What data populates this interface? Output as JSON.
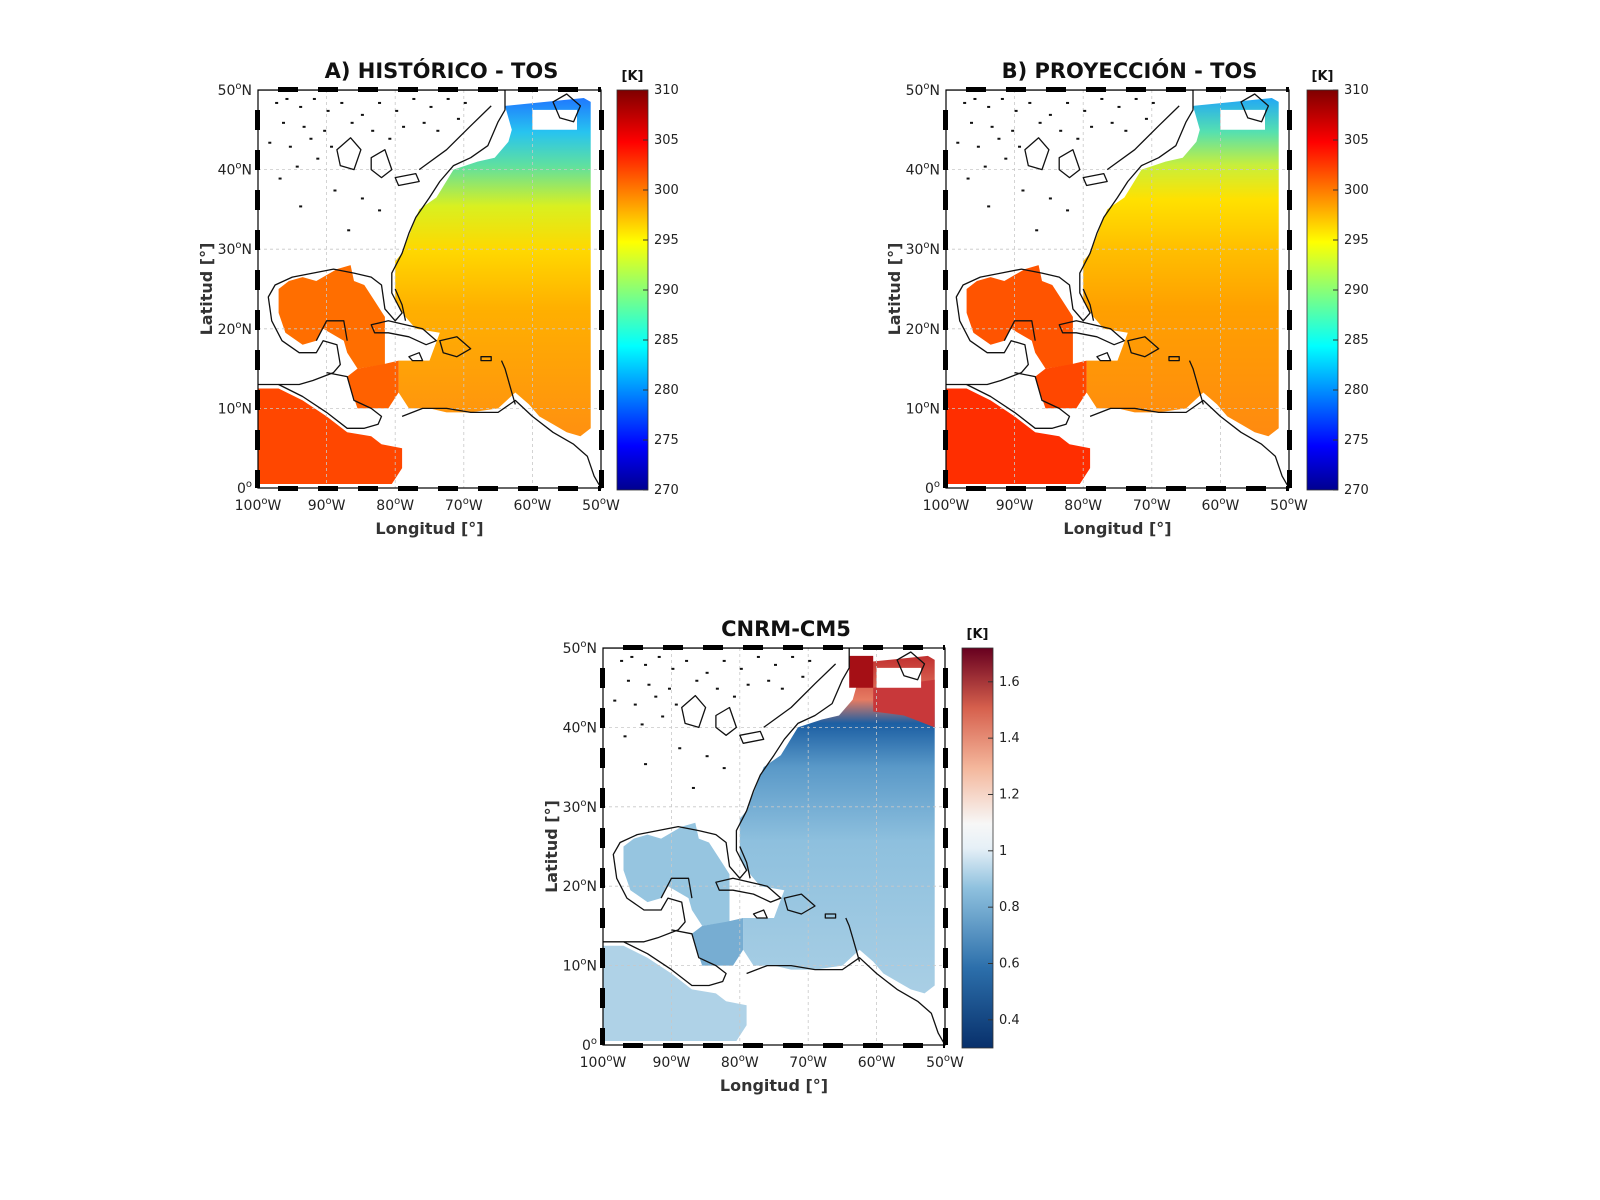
{
  "panels": [
    {
      "id": "historico",
      "title": "A) HISTÓRICO - TOS",
      "colorbar": {
        "unit": "[K]",
        "ticks": [
          "310",
          "305",
          "300",
          "295",
          "290",
          "285",
          "280",
          "275",
          "270"
        ],
        "scale": "jet",
        "range": [
          270,
          310
        ]
      },
      "field": {
        "north_k": 285,
        "south_k": 301,
        "gulf_k": 300.5,
        "pacific_k": 302
      }
    },
    {
      "id": "proyeccion",
      "title": "B) PROYECCIÓN - TOS",
      "colorbar": {
        "unit": "[K]",
        "ticks": [
          "310",
          "305",
          "300",
          "295",
          "290",
          "285",
          "280",
          "275",
          "270"
        ],
        "scale": "jet",
        "range": [
          270,
          310
        ]
      },
      "field": {
        "north_k": 286,
        "south_k": 302,
        "gulf_k": 301.5,
        "pacific_k": 303
      }
    },
    {
      "id": "diferencia",
      "title": "CNRM-CM5",
      "colorbar": {
        "unit": "[K]",
        "ticks": [
          "1.6",
          "1.4",
          "1.2",
          "1",
          "0.8",
          "0.6",
          "0.4"
        ],
        "scale": "diverging-red-blue",
        "range": [
          0.3,
          1.72
        ]
      },
      "field": {
        "north_k": 1.6,
        "mid_k": 0.65,
        "south_k": 0.8,
        "gulf_k": 0.88,
        "pacific_k": 0.92
      }
    }
  ],
  "axes": {
    "xlabel": "Longitud [°]",
    "ylabel": "Latitud [°]",
    "xticks": [
      "100",
      "90",
      "80",
      "70",
      "60",
      "50"
    ],
    "xsuffix": "W",
    "yticks": [
      "0",
      "10",
      "20",
      "30",
      "40",
      "50"
    ],
    "ysuffix": "N",
    "degree_mark": "o",
    "lon_range": [
      -100,
      -50
    ],
    "lat_range": [
      0,
      50
    ]
  }
}
